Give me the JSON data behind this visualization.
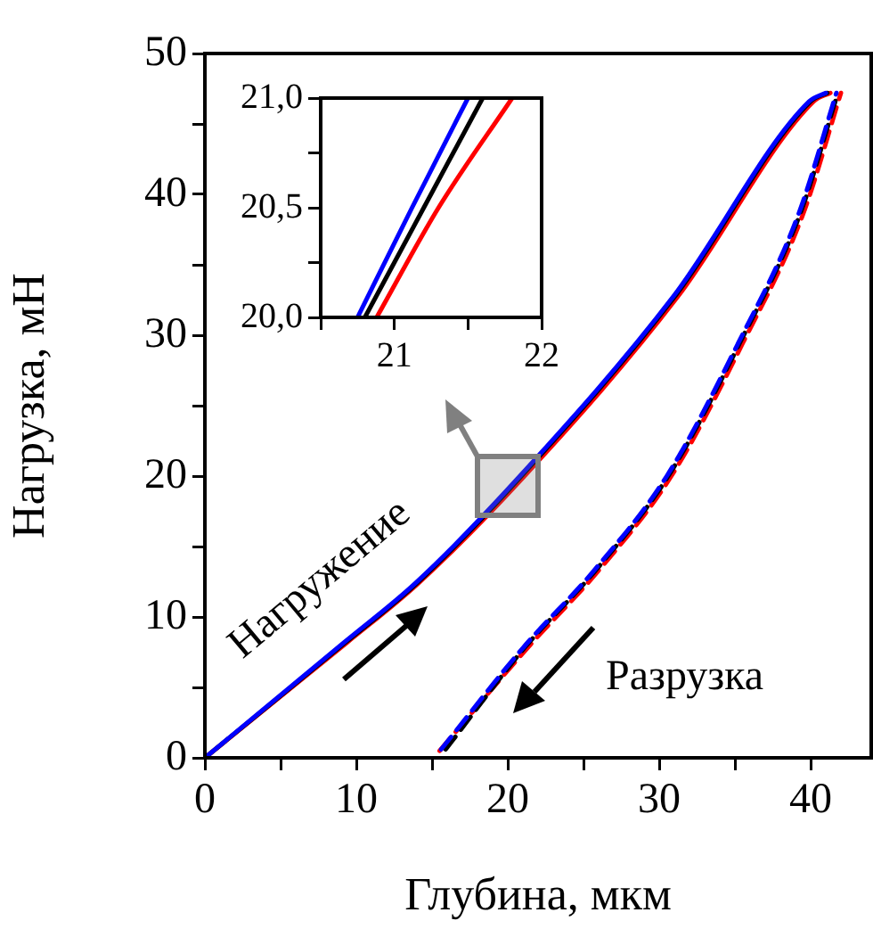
{
  "chart_data": [
    {
      "type": "line",
      "xlabel": "Глубина, мкм",
      "ylabel": "Нагрузка, мН",
      "xlim": [
        0,
        44
      ],
      "ylim": [
        0,
        50
      ],
      "xticks": [
        0,
        {
          "value": 5,
          "label": null
        },
        10,
        {
          "value": 15,
          "label": null
        },
        20,
        {
          "value": 25,
          "label": null
        },
        30,
        {
          "value": 35,
          "label": null
        },
        40
      ],
      "yticks": [
        0,
        {
          "value": 5,
          "label": null
        },
        10,
        {
          "value": 15,
          "label": null
        },
        20,
        {
          "value": 25,
          "label": null
        },
        30,
        {
          "value": 35,
          "label": null
        },
        40,
        {
          "value": 45,
          "label": null
        },
        50
      ],
      "grid": false,
      "legend": false,
      "marker": "none",
      "annotations": [
        "Нагружение",
        "Разрузка"
      ],
      "series": [
        {
          "color": "#0000ff",
          "line_style": "solid",
          "x": [
            0,
            9.2,
            13.9,
            20.8,
            30.9,
            39.9,
            41.0
          ],
          "values": [
            0,
            8.2,
            12.4,
            20,
            32.7,
            46.6,
            47.2
          ]
        },
        {
          "color": "#000000",
          "line_style": "solid",
          "x": [
            0,
            9.3,
            14.0,
            20.9,
            31.0,
            40.0,
            41.1
          ],
          "values": [
            0,
            8.2,
            12.4,
            20,
            32.7,
            46.6,
            47.2
          ]
        },
        {
          "color": "#ff0000",
          "line_style": "solid",
          "x": [
            0,
            9.4,
            14.1,
            21.1,
            31.2,
            40.2,
            41.3
          ],
          "values": [
            0,
            8.2,
            12.4,
            20,
            32.7,
            46.6,
            47.2
          ]
        },
        {
          "color": "#0000ff",
          "line_style": "dashed",
          "x": [
            15.6,
            21.0,
            25.7,
            30.5,
            35.2,
            39.2,
            41.7
          ],
          "values": [
            0.6,
            7.8,
            13.3,
            20,
            29.4,
            38.6,
            47.2
          ]
        },
        {
          "color": "#000000",
          "line_style": "dashed",
          "x": [
            15.9,
            21.1,
            25.8,
            30.6,
            35.3,
            39.3,
            41.8
          ],
          "values": [
            0.6,
            7.8,
            13.3,
            20,
            29.4,
            38.6,
            47.2
          ]
        },
        {
          "color": "#ff0000",
          "line_style": "dashed",
          "x": [
            15.5,
            21.3,
            26.0,
            30.8,
            35.5,
            39.5,
            42.0
          ],
          "values": [
            0.5,
            7.8,
            13.3,
            20,
            29.4,
            38.6,
            47.2
          ]
        }
      ]
    },
    {
      "type": "line",
      "xlim": [
        20.5,
        22
      ],
      "ylim": [
        20,
        21
      ],
      "xticks": [
        {
          "value": 20.5,
          "label": null
        },
        21,
        {
          "value": 21.5,
          "label": null
        },
        22
      ],
      "yticks": [
        {
          "value": 20,
          "label": "20,0"
        },
        {
          "value": 20.25,
          "label": null
        },
        {
          "value": 20.5,
          "label": "20,5"
        },
        {
          "value": 20.75,
          "label": null
        },
        {
          "value": 21,
          "label": "21,0"
        }
      ],
      "grid": false,
      "legend": false,
      "marker": "none",
      "series": [
        {
          "color": "#0000ff",
          "line_style": "solid",
          "x": [
            20.75,
            21.12,
            21.5
          ],
          "values": [
            20,
            20.5,
            21
          ]
        },
        {
          "color": "#000000",
          "line_style": "solid",
          "x": [
            20.8,
            21.2,
            21.6
          ],
          "values": [
            20,
            20.5,
            21
          ]
        },
        {
          "color": "#ff0000",
          "line_style": "solid",
          "x": [
            20.88,
            21.3,
            21.8
          ],
          "values": [
            20,
            20.5,
            21
          ]
        }
      ]
    }
  ]
}
